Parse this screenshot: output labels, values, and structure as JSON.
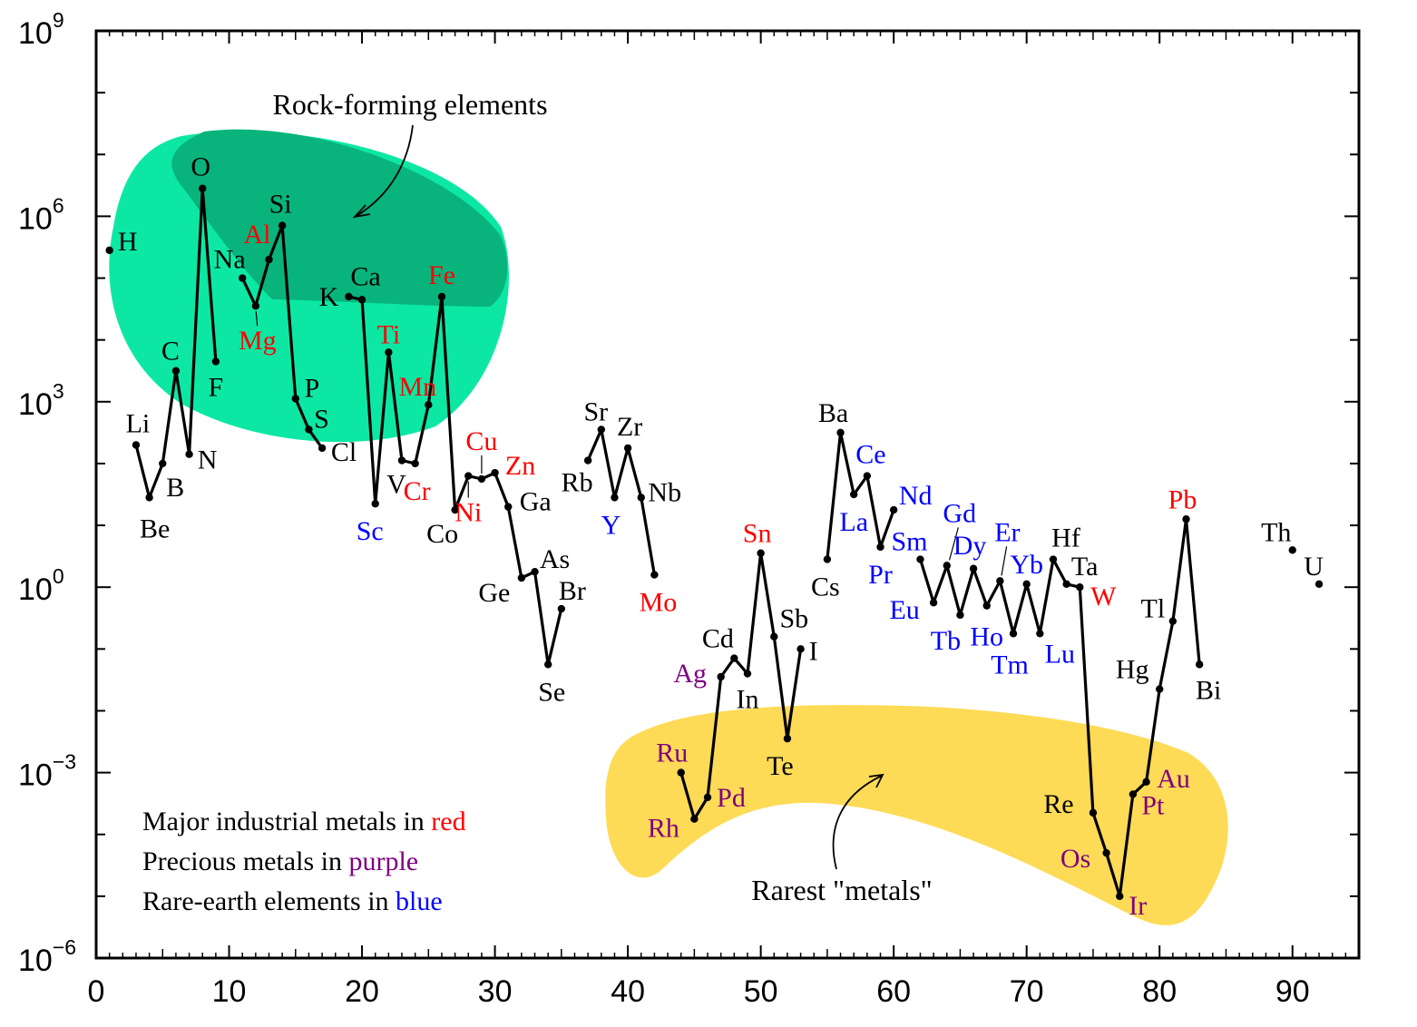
{
  "chart_data": {
    "type": "line",
    "xlim": [
      0,
      95
    ],
    "ylim": [
      -6,
      9
    ],
    "y_scale": "log",
    "x_ticks": [
      "0",
      "10",
      "20",
      "30",
      "40",
      "50",
      "60",
      "70",
      "80",
      "90"
    ],
    "y_ticks": [
      {
        "base": "10",
        "exp": "9"
      },
      {
        "base": "10",
        "exp": "6"
      },
      {
        "base": "10",
        "exp": "3"
      },
      {
        "base": "10",
        "exp": "0"
      },
      {
        "base": "10",
        "exp": "−3"
      },
      {
        "base": "10",
        "exp": "−6"
      }
    ],
    "colors": {
      "industrial": "#ff0000",
      "precious": "#800080",
      "rare_earth": "#0000ff",
      "other": "#000000",
      "rock_light": "#0ce8a4",
      "rock_dark": "#08b47c",
      "rare_region": "#fedb56"
    },
    "elements": [
      {
        "z": 1,
        "symbol": "H",
        "log": 5.45,
        "cat": "other",
        "dx": 20,
        "dy": -10
      },
      {
        "z": 3,
        "symbol": "Li",
        "log": 2.3,
        "cat": "other",
        "dx": 2,
        "dy": -24
      },
      {
        "z": 4,
        "symbol": "Be",
        "log": 1.45,
        "cat": "other",
        "dx": 6,
        "dy": 34
      },
      {
        "z": 5,
        "symbol": "B",
        "log": 2.0,
        "cat": "other",
        "dx": 14,
        "dy": 26
      },
      {
        "z": 6,
        "symbol": "C",
        "log": 3.5,
        "cat": "other",
        "dx": -6,
        "dy": -22
      },
      {
        "z": 7,
        "symbol": "N",
        "log": 2.15,
        "cat": "other",
        "dx": 20,
        "dy": 6
      },
      {
        "z": 8,
        "symbol": "O",
        "log": 6.45,
        "cat": "other",
        "dx": -2,
        "dy": -24
      },
      {
        "z": 9,
        "symbol": "F",
        "log": 3.65,
        "cat": "other",
        "dx": 0,
        "dy": 28
      },
      {
        "z": 11,
        "symbol": "Na",
        "log": 5.0,
        "cat": "other",
        "dx": -14,
        "dy": -21
      },
      {
        "z": 12,
        "symbol": "Mg",
        "log": 4.55,
        "cat": "industrial",
        "dx": 2,
        "dy": 38
      },
      {
        "z": 13,
        "symbol": "Al",
        "log": 5.3,
        "cat": "industrial",
        "dx": -13,
        "dy": -28
      },
      {
        "z": 14,
        "symbol": "Si",
        "log": 5.85,
        "cat": "other",
        "dx": -2,
        "dy": -24
      },
      {
        "z": 15,
        "symbol": "P",
        "log": 3.05,
        "cat": "other",
        "dx": 18,
        "dy": -12
      },
      {
        "z": 16,
        "symbol": "S",
        "log": 2.55,
        "cat": "other",
        "dx": 14,
        "dy": -12
      },
      {
        "z": 17,
        "symbol": "Cl",
        "log": 2.25,
        "cat": "other",
        "dx": 24,
        "dy": 4
      },
      {
        "z": 19,
        "symbol": "K",
        "log": 4.7,
        "cat": "other",
        "dx": -22,
        "dy": 0
      },
      {
        "z": 20,
        "symbol": "Ca",
        "log": 4.65,
        "cat": "other",
        "dx": 4,
        "dy": -26
      },
      {
        "z": 21,
        "symbol": "Sc",
        "log": 1.35,
        "cat": "rare_earth",
        "dx": -6,
        "dy": 30
      },
      {
        "z": 22,
        "symbol": "Ti",
        "log": 3.8,
        "cat": "industrial",
        "dx": 0,
        "dy": -20
      },
      {
        "z": 23,
        "symbol": "V",
        "log": 2.05,
        "cat": "other",
        "dx": -6,
        "dy": 26
      },
      {
        "z": 24,
        "symbol": "Cr",
        "log": 2.0,
        "cat": "industrial",
        "dx": 2,
        "dy": 30
      },
      {
        "z": 25,
        "symbol": "Mn",
        "log": 2.95,
        "cat": "industrial",
        "dx": -12,
        "dy": -20
      },
      {
        "z": 26,
        "symbol": "Fe",
        "log": 4.7,
        "cat": "industrial",
        "dx": 0,
        "dy": -24
      },
      {
        "z": 27,
        "symbol": "Co",
        "log": 1.25,
        "cat": "other",
        "dx": -14,
        "dy": 26
      },
      {
        "z": 28,
        "symbol": "Ni",
        "log": 1.8,
        "cat": "industrial",
        "dx": 0,
        "dy": 40
      },
      {
        "z": 29,
        "symbol": "Cu",
        "log": 1.75,
        "cat": "industrial",
        "dx": 0,
        "dy": -42
      },
      {
        "z": 30,
        "symbol": "Zn",
        "log": 1.85,
        "cat": "industrial",
        "dx": 28,
        "dy": -8
      },
      {
        "z": 31,
        "symbol": "Ga",
        "log": 1.3,
        "cat": "other",
        "dx": 30,
        "dy": -6
      },
      {
        "z": 32,
        "symbol": "Ge",
        "log": 0.15,
        "cat": "other",
        "dx": -30,
        "dy": 16
      },
      {
        "z": 33,
        "symbol": "As",
        "log": 0.25,
        "cat": "other",
        "dx": 22,
        "dy": -14
      },
      {
        "z": 34,
        "symbol": "Se",
        "log": -1.25,
        "cat": "other",
        "dx": 4,
        "dy": 30
      },
      {
        "z": 35,
        "symbol": "Br",
        "log": -0.35,
        "cat": "other",
        "dx": 12,
        "dy": -20
      },
      {
        "z": 37,
        "symbol": "Rb",
        "log": 2.05,
        "cat": "other",
        "dx": -12,
        "dy": 24
      },
      {
        "z": 38,
        "symbol": "Sr",
        "log": 2.55,
        "cat": "other",
        "dx": -6,
        "dy": -20
      },
      {
        "z": 39,
        "symbol": "Y",
        "log": 1.45,
        "cat": "rare_earth",
        "dx": -4,
        "dy": 30
      },
      {
        "z": 40,
        "symbol": "Zr",
        "log": 2.25,
        "cat": "other",
        "dx": 2,
        "dy": -24
      },
      {
        "z": 41,
        "symbol": "Nb",
        "log": 1.45,
        "cat": "other",
        "dx": 26,
        "dy": -6
      },
      {
        "z": 42,
        "symbol": "Mo",
        "log": 0.2,
        "cat": "industrial",
        "dx": 4,
        "dy": 30
      },
      {
        "z": 44,
        "symbol": "Ru",
        "log": -3.0,
        "cat": "precious",
        "dx": -10,
        "dy": -22
      },
      {
        "z": 45,
        "symbol": "Rh",
        "log": -3.75,
        "cat": "precious",
        "dx": -34,
        "dy": 10
      },
      {
        "z": 46,
        "symbol": "Pd",
        "log": -3.4,
        "cat": "precious",
        "dx": 26,
        "dy": 0
      },
      {
        "z": 47,
        "symbol": "Ag",
        "log": -1.45,
        "cat": "precious",
        "dx": -34,
        "dy": -4
      },
      {
        "z": 48,
        "symbol": "Cd",
        "log": -1.15,
        "cat": "other",
        "dx": -18,
        "dy": -22
      },
      {
        "z": 49,
        "symbol": "In",
        "log": -1.4,
        "cat": "other",
        "dx": 0,
        "dy": 28
      },
      {
        "z": 50,
        "symbol": "Sn",
        "log": 0.55,
        "cat": "industrial",
        "dx": -4,
        "dy": -22
      },
      {
        "z": 51,
        "symbol": "Sb",
        "log": -0.8,
        "cat": "other",
        "dx": 22,
        "dy": -20
      },
      {
        "z": 52,
        "symbol": "Te",
        "log": -2.45,
        "cat": "other",
        "dx": -8,
        "dy": 30
      },
      {
        "z": 53,
        "symbol": "I",
        "log": -1.0,
        "cat": "other",
        "dx": 14,
        "dy": 2
      },
      {
        "z": 55,
        "symbol": "Cs",
        "log": 0.45,
        "cat": "other",
        "dx": -2,
        "dy": 30
      },
      {
        "z": 56,
        "symbol": "Ba",
        "log": 2.5,
        "cat": "other",
        "dx": -8,
        "dy": -22
      },
      {
        "z": 57,
        "symbol": "La",
        "log": 1.5,
        "cat": "rare_earth",
        "dx": 0,
        "dy": 30
      },
      {
        "z": 58,
        "symbol": "Ce",
        "log": 1.8,
        "cat": "rare_earth",
        "dx": 4,
        "dy": -24
      },
      {
        "z": 59,
        "symbol": "Pr",
        "log": 0.65,
        "cat": "rare_earth",
        "dx": 0,
        "dy": 30
      },
      {
        "z": 60,
        "symbol": "Nd",
        "log": 1.25,
        "cat": "rare_earth",
        "dx": 24,
        "dy": -16
      },
      {
        "z": 62,
        "symbol": "Sm",
        "log": 0.45,
        "cat": "rare_earth",
        "dx": -12,
        "dy": -20
      },
      {
        "z": 63,
        "symbol": "Eu",
        "log": -0.25,
        "cat": "rare_earth",
        "dx": -32,
        "dy": 8
      },
      {
        "z": 64,
        "symbol": "Gd",
        "log": 0.35,
        "cat": "rare_earth",
        "dx": 14,
        "dy": -58
      },
      {
        "z": 65,
        "symbol": "Tb",
        "log": -0.45,
        "cat": "rare_earth",
        "dx": -16,
        "dy": 28
      },
      {
        "z": 66,
        "symbol": "Dy",
        "log": 0.3,
        "cat": "rare_earth",
        "dx": -4,
        "dy": -26
      },
      {
        "z": 67,
        "symbol": "Ho",
        "log": -0.3,
        "cat": "rare_earth",
        "dx": 0,
        "dy": 34
      },
      {
        "z": 68,
        "symbol": "Er",
        "log": 0.1,
        "cat": "rare_earth",
        "dx": 8,
        "dy": -54
      },
      {
        "z": 69,
        "symbol": "Tm",
        "log": -0.75,
        "cat": "rare_earth",
        "dx": -4,
        "dy": 34
      },
      {
        "z": 70,
        "symbol": "Yb",
        "log": 0.05,
        "cat": "rare_earth",
        "dx": 0,
        "dy": -22
      },
      {
        "z": 71,
        "symbol": "Lu",
        "log": -0.75,
        "cat": "rare_earth",
        "dx": 22,
        "dy": 22
      },
      {
        "z": 72,
        "symbol": "Hf",
        "log": 0.45,
        "cat": "other",
        "dx": 14,
        "dy": -24
      },
      {
        "z": 73,
        "symbol": "Ta",
        "log": 0.05,
        "cat": "other",
        "dx": 20,
        "dy": -20
      },
      {
        "z": 74,
        "symbol": "W",
        "log": 0.0,
        "cat": "industrial",
        "dx": 26,
        "dy": 10
      },
      {
        "z": 75,
        "symbol": "Re",
        "log": -3.65,
        "cat": "other",
        "dx": -38,
        "dy": -10
      },
      {
        "z": 76,
        "symbol": "Os",
        "log": -4.3,
        "cat": "precious",
        "dx": -34,
        "dy": 6
      },
      {
        "z": 77,
        "symbol": "Ir",
        "log": -5.0,
        "cat": "precious",
        "dx": 20,
        "dy": 10
      },
      {
        "z": 78,
        "symbol": "Pt",
        "log": -3.35,
        "cat": "precious",
        "dx": 22,
        "dy": 12
      },
      {
        "z": 79,
        "symbol": "Au",
        "log": -3.15,
        "cat": "precious",
        "dx": 30,
        "dy": -4
      },
      {
        "z": 80,
        "symbol": "Hg",
        "log": -1.65,
        "cat": "other",
        "dx": -30,
        "dy": -22
      },
      {
        "z": 81,
        "symbol": "Tl",
        "log": -0.55,
        "cat": "other",
        "dx": -22,
        "dy": -14
      },
      {
        "z": 82,
        "symbol": "Pb",
        "log": 1.1,
        "cat": "industrial",
        "dx": -4,
        "dy": -22
      },
      {
        "z": 83,
        "symbol": "Bi",
        "log": -1.25,
        "cat": "other",
        "dx": 10,
        "dy": 28
      },
      {
        "z": 90,
        "symbol": "Th",
        "log": 0.6,
        "cat": "other",
        "dx": -18,
        "dy": -20
      },
      {
        "z": 92,
        "symbol": "U",
        "log": 0.05,
        "cat": "other",
        "dx": -6,
        "dy": -20
      }
    ],
    "segments": [
      [
        3,
        4,
        5,
        6,
        7,
        8,
        9
      ],
      [
        11,
        12,
        13,
        14,
        15,
        16,
        17
      ],
      [
        19,
        20,
        21,
        22,
        23,
        24,
        25,
        26,
        27,
        28,
        29,
        30,
        31,
        32,
        33,
        34,
        35
      ],
      [
        37,
        38,
        39,
        40,
        41,
        42
      ],
      [
        44,
        45,
        46,
        47,
        48,
        49,
        50,
        51,
        52,
        53
      ],
      [
        55,
        56,
        57,
        58,
        59,
        60
      ],
      [
        62,
        63,
        64,
        65,
        66,
        67,
        68,
        69,
        70,
        71,
        72,
        73,
        74,
        75,
        76,
        77,
        78,
        79,
        80,
        81,
        82,
        83
      ]
    ],
    "annotations": {
      "rock_label": "Rock-forming elements",
      "rare_label": "Rarest \"metals\""
    },
    "legend": [
      {
        "text": "Major industrial metals in ",
        "word": "red",
        "cat": "industrial"
      },
      {
        "text": "Precious metals in ",
        "word": "purple",
        "cat": "precious"
      },
      {
        "text": "Rare-earth elements in ",
        "word": "blue",
        "cat": "rare_earth"
      }
    ]
  }
}
